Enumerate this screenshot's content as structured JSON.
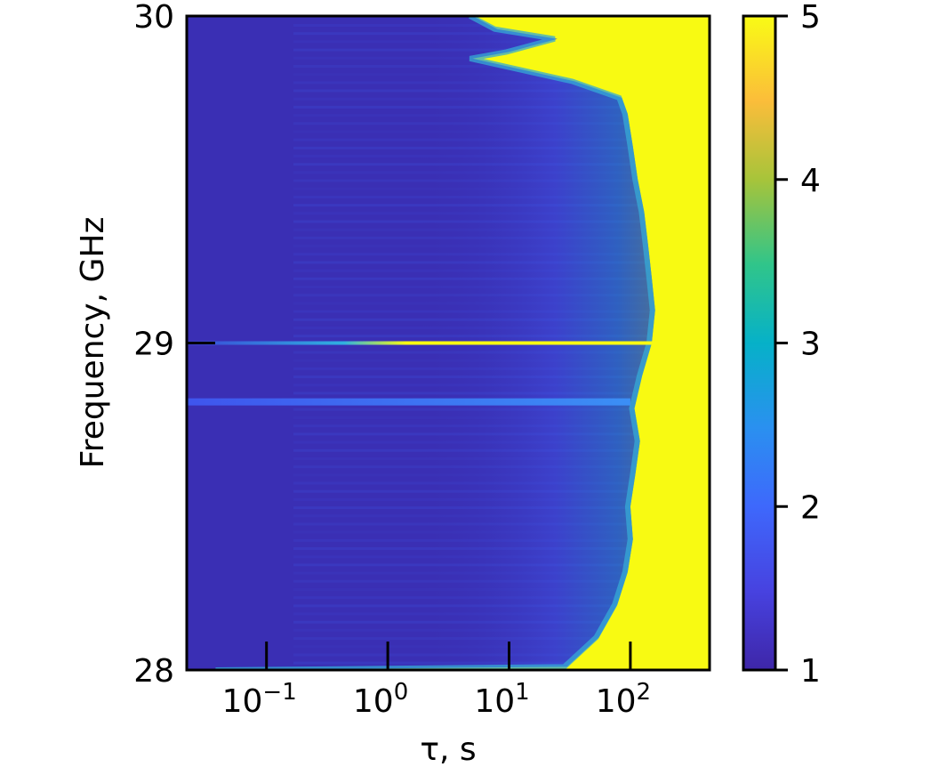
{
  "chart_data": {
    "type": "heatmap",
    "title": "",
    "xlabel": "τ, s",
    "ylabel": "Frequency, GHz",
    "x_scale": "log",
    "xlim": [
      0.022,
      450
    ],
    "ylim": [
      28,
      30
    ],
    "x_ticks": [
      {
        "value": 0.1,
        "base": "10",
        "exp": "−1"
      },
      {
        "value": 1,
        "base": "10",
        "exp": "0"
      },
      {
        "value": 10,
        "base": "10",
        "exp": "1"
      },
      {
        "value": 100,
        "base": "10",
        "exp": "2"
      }
    ],
    "y_ticks": [
      {
        "value": 28,
        "label": "28"
      },
      {
        "value": 29,
        "label": "29"
      },
      {
        "value": 30,
        "label": "30"
      }
    ],
    "colorbar": {
      "range": [
        1,
        5
      ],
      "colormap": "parula",
      "ticks": [
        {
          "value": 1,
          "label": "1"
        },
        {
          "value": 2,
          "label": "2"
        },
        {
          "value": 3,
          "label": "3"
        },
        {
          "value": 4,
          "label": "4"
        },
        {
          "value": 5,
          "label": "5"
        }
      ]
    },
    "low_value_color": "#3a2fb4",
    "high_value_color": "#f8fa12",
    "transition_boundary": {
      "description": "tau at which value saturates to 5 per frequency",
      "points": [
        {
          "freq": 28.0,
          "tau": 0.04
        },
        {
          "freq": 28.01,
          "tau": 30
        },
        {
          "freq": 28.1,
          "tau": 55
        },
        {
          "freq": 28.2,
          "tau": 78
        },
        {
          "freq": 28.3,
          "tau": 95
        },
        {
          "freq": 28.4,
          "tau": 105
        },
        {
          "freq": 28.5,
          "tau": 100
        },
        {
          "freq": 28.6,
          "tau": 110
        },
        {
          "freq": 28.7,
          "tau": 120
        },
        {
          "freq": 28.8,
          "tau": 108
        },
        {
          "freq": 28.9,
          "tau": 125
        },
        {
          "freq": 29.0,
          "tau": 150
        },
        {
          "freq": 29.1,
          "tau": 160
        },
        {
          "freq": 29.2,
          "tau": 150
        },
        {
          "freq": 29.3,
          "tau": 140
        },
        {
          "freq": 29.4,
          "tau": 130
        },
        {
          "freq": 29.5,
          "tau": 115
        },
        {
          "freq": 29.6,
          "tau": 105
        },
        {
          "freq": 29.7,
          "tau": 95
        },
        {
          "freq": 29.75,
          "tau": 85
        },
        {
          "freq": 29.8,
          "tau": 35
        },
        {
          "freq": 29.87,
          "tau": 5
        },
        {
          "freq": 29.89,
          "tau": 10
        },
        {
          "freq": 29.93,
          "tau": 25
        },
        {
          "freq": 29.96,
          "tau": 8
        },
        {
          "freq": 30.0,
          "tau": 5
        }
      ]
    },
    "bright_lines": [
      {
        "freq": 29.0,
        "tau_from": 1.1,
        "tau_to": 450,
        "value": 5
      },
      {
        "freq": 28.82,
        "tau_from": 0.02,
        "tau_to": 100,
        "value": 2
      }
    ]
  }
}
